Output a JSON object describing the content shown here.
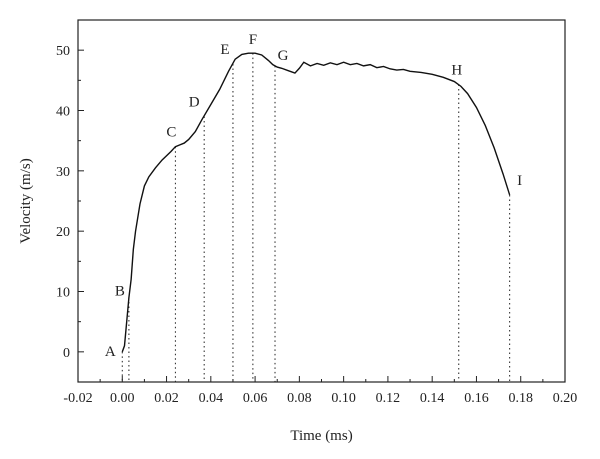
{
  "chart_data": {
    "type": "line",
    "xlabel": "Time (ms)",
    "ylabel": "Velocity (m/s)",
    "xlim": [
      -0.02,
      0.2
    ],
    "ylim": [
      -5,
      55
    ],
    "x_ticks": [
      "-0.02",
      "0.00",
      "0.02",
      "0.04",
      "0.06",
      "0.08",
      "0.10",
      "0.12",
      "0.14",
      "0.16",
      "0.18",
      "0.20"
    ],
    "x_tick_values": [
      -0.02,
      0.0,
      0.02,
      0.04,
      0.06,
      0.08,
      0.1,
      0.12,
      0.14,
      0.16,
      0.18,
      0.2
    ],
    "y_ticks": [
      "0",
      "10",
      "20",
      "30",
      "40",
      "50"
    ],
    "y_tick_values": [
      0,
      10,
      20,
      30,
      40,
      50
    ],
    "grid": false,
    "series": [
      {
        "x": [
          0.0,
          0.001,
          0.002,
          0.003,
          0.004,
          0.005,
          0.006,
          0.008,
          0.01,
          0.012,
          0.015,
          0.018,
          0.02,
          0.022,
          0.024,
          0.026,
          0.028,
          0.03,
          0.033,
          0.036,
          0.04,
          0.044,
          0.048,
          0.051,
          0.054,
          0.057,
          0.06,
          0.063,
          0.066,
          0.068,
          0.07,
          0.072,
          0.075,
          0.078,
          0.08,
          0.082,
          0.085,
          0.088,
          0.091,
          0.094,
          0.097,
          0.1,
          0.103,
          0.106,
          0.109,
          0.112,
          0.115,
          0.118,
          0.121,
          0.124,
          0.127,
          0.13,
          0.135,
          0.14,
          0.145,
          0.15,
          0.153,
          0.156,
          0.16,
          0.164,
          0.168,
          0.172,
          0.175
        ],
        "y": [
          0.0,
          1.0,
          5.0,
          9.0,
          12.0,
          17.0,
          20.0,
          24.5,
          27.5,
          29.0,
          30.5,
          31.8,
          32.5,
          33.2,
          34.0,
          34.3,
          34.6,
          35.2,
          36.5,
          38.5,
          41.0,
          43.5,
          46.5,
          48.5,
          49.3,
          49.5,
          49.5,
          49.2,
          48.3,
          47.6,
          47.2,
          47.0,
          46.6,
          46.2,
          47.0,
          48.0,
          47.4,
          47.8,
          47.5,
          47.9,
          47.6,
          48.0,
          47.6,
          47.8,
          47.4,
          47.6,
          47.1,
          47.3,
          46.9,
          46.7,
          46.8,
          46.5,
          46.3,
          46.0,
          45.5,
          44.8,
          44.0,
          42.8,
          40.5,
          37.5,
          33.8,
          29.5,
          26.0
        ]
      }
    ],
    "points": [
      {
        "label": "A",
        "x": 0.0,
        "y": 0.0
      },
      {
        "label": "B",
        "x": 0.003,
        "y": 9.0
      },
      {
        "label": "C",
        "x": 0.024,
        "y": 34.0
      },
      {
        "label": "D",
        "x": 0.037,
        "y": 39.0
      },
      {
        "label": "E",
        "x": 0.05,
        "y": 47.7
      },
      {
        "label": "F",
        "x": 0.059,
        "y": 49.5
      },
      {
        "label": "G",
        "x": 0.069,
        "y": 47.4
      },
      {
        "label": "H",
        "x": 0.152,
        "y": 44.3
      },
      {
        "label": "I",
        "x": 0.175,
        "y": 26.0
      }
    ]
  }
}
